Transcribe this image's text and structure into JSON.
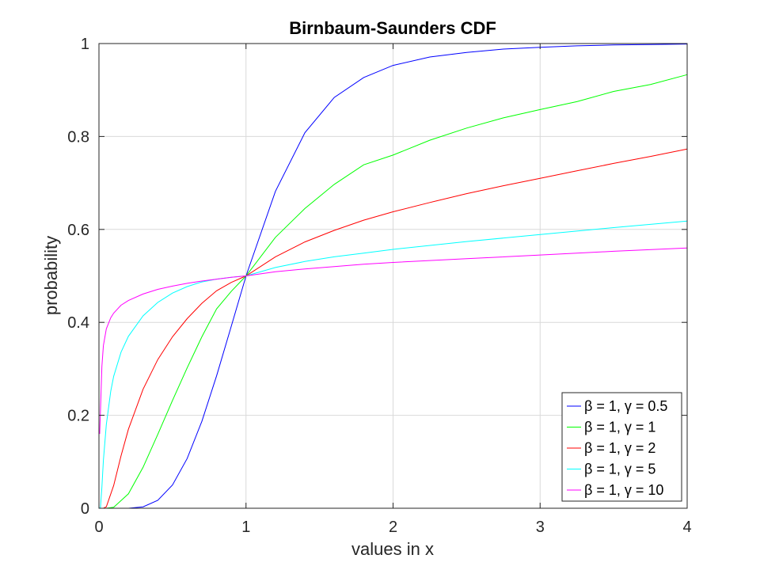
{
  "chart_data": {
    "type": "line",
    "title": "Birnbaum-Saunders CDF",
    "xlabel": "values in x",
    "ylabel": "probability",
    "xlim": [
      0,
      4
    ],
    "ylim": [
      0,
      1
    ],
    "xticks": [
      0,
      1,
      2,
      3,
      4
    ],
    "yticks": [
      0,
      0.2,
      0.4,
      0.6,
      0.8,
      1
    ],
    "xtick_labels": [
      "0",
      "1",
      "2",
      "3",
      "4"
    ],
    "ytick_labels": [
      "0",
      "0.2",
      "0.4",
      "0.6",
      "0.8",
      "1"
    ],
    "grid": true,
    "legend_position": "bottom-right",
    "series": [
      {
        "name": "β = 1, γ = 0.5",
        "color": "#0000ff",
        "x": [
          0.01,
          0.1,
          0.2,
          0.3,
          0.4,
          0.5,
          0.6,
          0.7,
          0.8,
          0.9,
          1.0,
          1.2,
          1.4,
          1.6,
          1.8,
          2.0,
          2.25,
          2.5,
          2.75,
          3.0,
          3.25,
          3.5,
          3.75,
          4.0
        ],
        "y": [
          0.0,
          0.0,
          0.0,
          0.003,
          0.017,
          0.05,
          0.107,
          0.187,
          0.285,
          0.392,
          0.5,
          0.682,
          0.808,
          0.884,
          0.927,
          0.953,
          0.971,
          0.981,
          0.988,
          0.992,
          0.995,
          0.997,
          0.998,
          0.999
        ]
      },
      {
        "name": "β = 1, γ = 1",
        "color": "#00ff00",
        "x": [
          0.01,
          0.05,
          0.1,
          0.2,
          0.3,
          0.4,
          0.5,
          0.6,
          0.7,
          0.8,
          0.9,
          1.0,
          1.2,
          1.4,
          1.6,
          1.8,
          2.0,
          2.25,
          2.5,
          2.75,
          3.0,
          3.25,
          3.5,
          3.75,
          4.0
        ],
        "y": [
          0.0,
          0.0,
          0.002,
          0.031,
          0.088,
          0.159,
          0.232,
          0.302,
          0.369,
          0.429,
          0.467,
          0.5,
          0.583,
          0.645,
          0.697,
          0.739,
          0.76,
          0.792,
          0.818,
          0.84,
          0.858,
          0.875,
          0.897,
          0.912,
          0.933
        ]
      },
      {
        "name": "β = 1, γ = 2",
        "color": "#ff0000",
        "x": [
          0.01,
          0.03,
          0.05,
          0.1,
          0.15,
          0.2,
          0.3,
          0.4,
          0.5,
          0.6,
          0.7,
          0.8,
          0.9,
          1.0,
          1.2,
          1.4,
          1.6,
          1.8,
          2.0,
          2.25,
          2.5,
          2.75,
          3.0,
          3.25,
          3.5,
          3.75,
          4.0
        ],
        "y": [
          0.0,
          0.0,
          0.003,
          0.049,
          0.113,
          0.17,
          0.256,
          0.32,
          0.369,
          0.408,
          0.441,
          0.468,
          0.486,
          0.5,
          0.541,
          0.573,
          0.598,
          0.62,
          0.638,
          0.658,
          0.677,
          0.694,
          0.71,
          0.726,
          0.742,
          0.757,
          0.773
        ]
      },
      {
        "name": "β = 1, γ = 5",
        "color": "#00ffff",
        "x": [
          0.005,
          0.01,
          0.02,
          0.03,
          0.05,
          0.08,
          0.1,
          0.15,
          0.2,
          0.3,
          0.4,
          0.5,
          0.6,
          0.7,
          0.8,
          0.9,
          1.0,
          1.2,
          1.4,
          1.6,
          1.8,
          2.0,
          2.5,
          3.0,
          3.5,
          4.0
        ],
        "y": [
          0.0,
          0.002,
          0.045,
          0.103,
          0.18,
          0.252,
          0.284,
          0.336,
          0.37,
          0.414,
          0.443,
          0.463,
          0.477,
          0.487,
          0.493,
          0.497,
          0.5,
          0.518,
          0.531,
          0.541,
          0.549,
          0.557,
          0.574,
          0.589,
          0.604,
          0.618
        ]
      },
      {
        "name": "β = 1, γ = 10",
        "color": "#ff00ff",
        "x": [
          0.005,
          0.01,
          0.02,
          0.03,
          0.05,
          0.08,
          0.1,
          0.15,
          0.2,
          0.3,
          0.4,
          0.5,
          0.6,
          0.7,
          0.8,
          0.9,
          1.0,
          1.2,
          1.4,
          1.6,
          1.8,
          2.0,
          2.5,
          3.0,
          3.5,
          4.0
        ],
        "y": [
          0.16,
          0.21,
          0.305,
          0.35,
          0.386,
          0.41,
          0.42,
          0.437,
          0.447,
          0.461,
          0.471,
          0.478,
          0.484,
          0.489,
          0.493,
          0.497,
          0.5,
          0.509,
          0.515,
          0.52,
          0.525,
          0.529,
          0.537,
          0.545,
          0.553,
          0.56
        ]
      }
    ]
  }
}
